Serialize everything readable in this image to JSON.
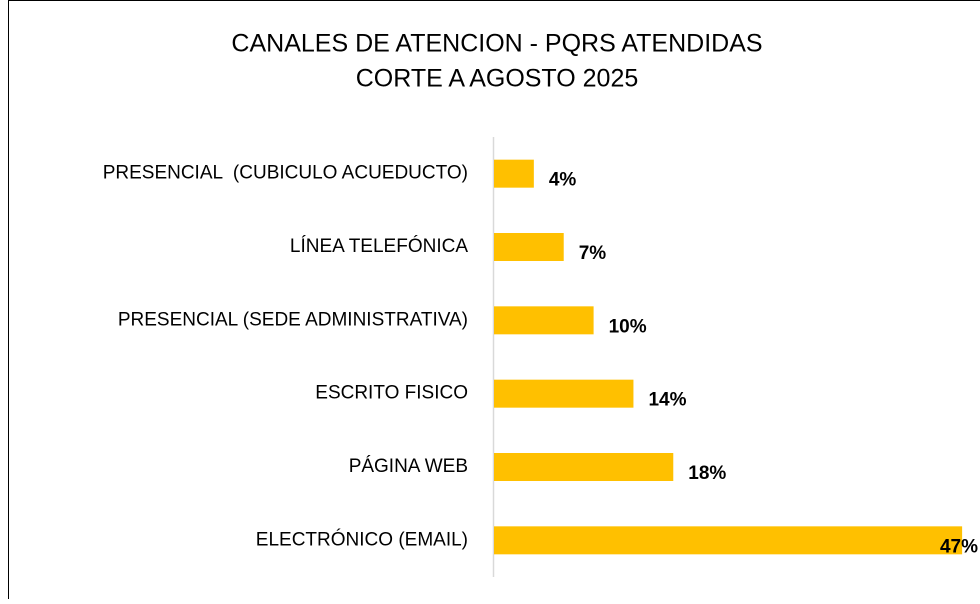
{
  "chart_data": {
    "type": "bar",
    "orientation": "horizontal",
    "title": [
      "CANALES DE ATENCION - PQRS ATENDIDAS",
      "CORTE A AGOSTO 2025"
    ],
    "categories": [
      "PRESENCIAL  (CUBICULO ACUEDUCTO)",
      "LÍNEA TELEFÓNICA",
      "PRESENCIAL (SEDE ADMINISTRATIVA)",
      "ESCRITO FISICO",
      "PÁGINA WEB",
      "ELECTRÓNICO (EMAIL)"
    ],
    "values": [
      4,
      7,
      10,
      14,
      18,
      47
    ],
    "value_labels": [
      "4%",
      "7%",
      "10%",
      "14%",
      "18%",
      "47%"
    ],
    "color": "#FFC000"
  }
}
